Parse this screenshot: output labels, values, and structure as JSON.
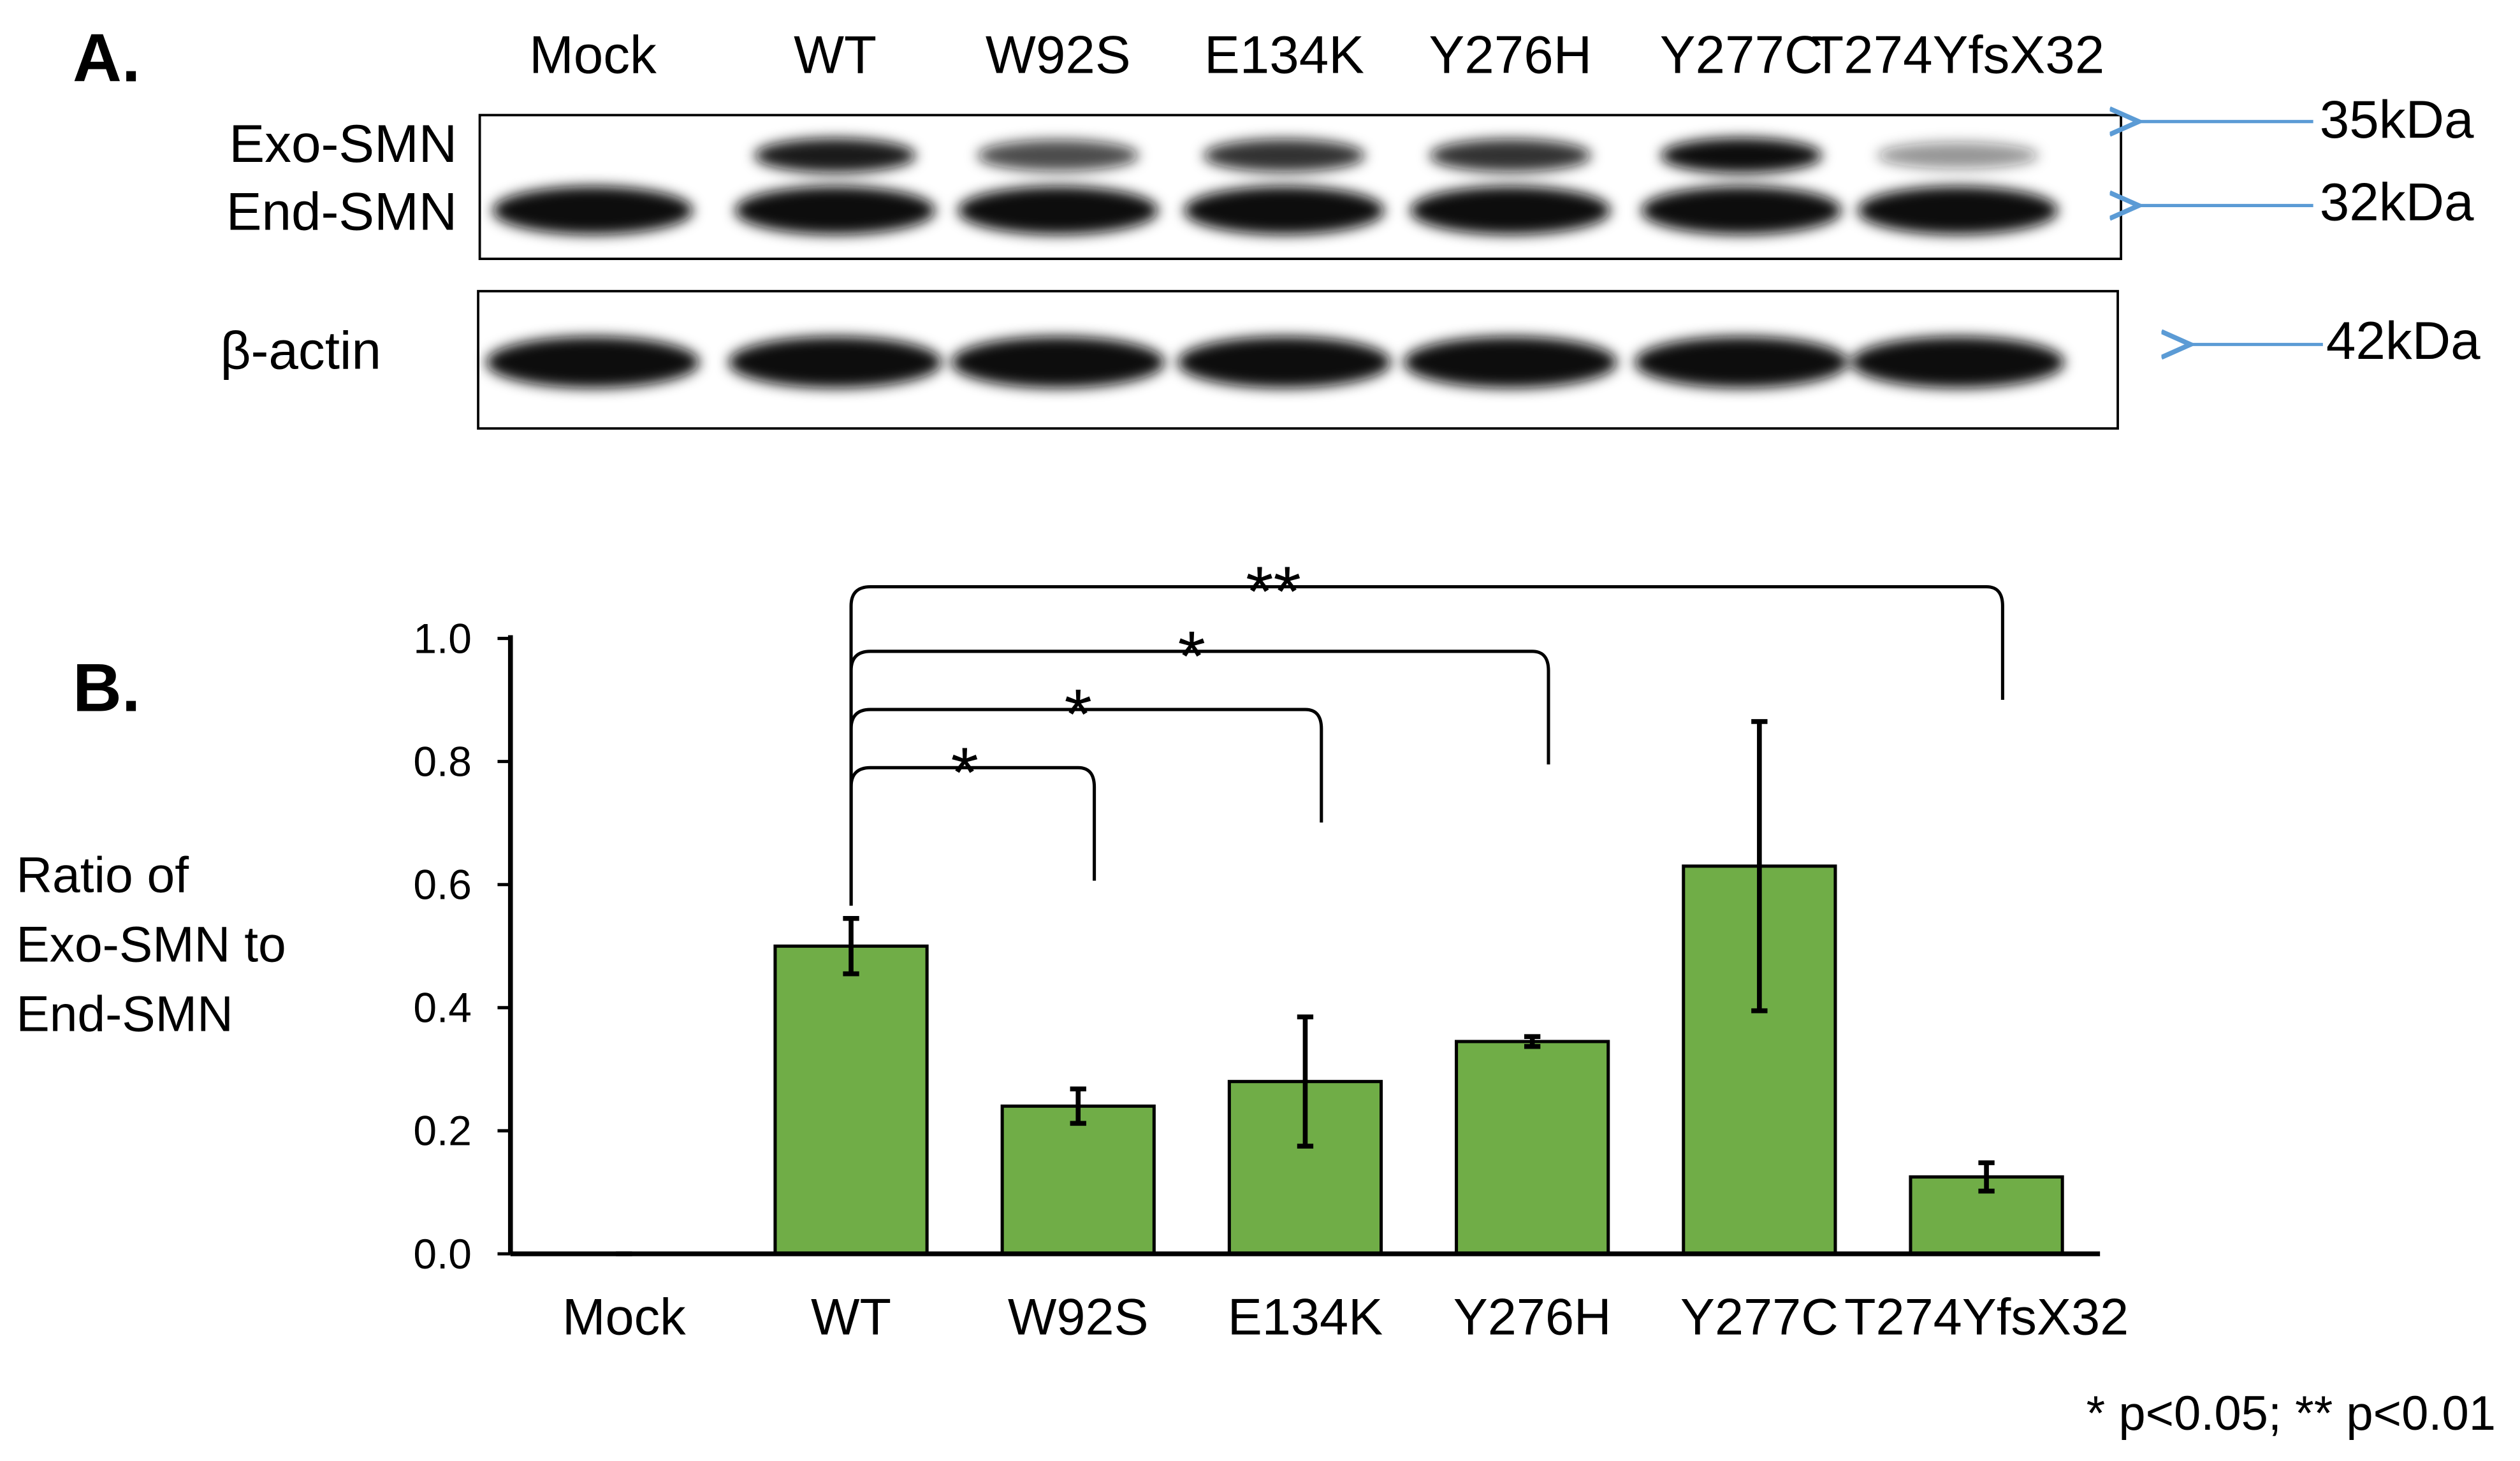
{
  "panel_a": {
    "label": "A.",
    "lanes": [
      "Mock",
      "WT",
      "W92S",
      "E134K",
      "Y276H",
      "Y277C",
      "T274YfsX32"
    ],
    "band_labels": [
      "Exo-SMN",
      "End-SMN",
      "β-actin"
    ],
    "size_markers": [
      "35kDa",
      "32kDa",
      "42kDa"
    ]
  },
  "chart_data": {
    "type": "bar",
    "panel_label": "B.",
    "ylabel_lines": [
      "Ratio of",
      "Exo-SMN to",
      "End-SMN"
    ],
    "categories": [
      "Mock",
      "WT",
      "W92S",
      "E134K",
      "Y276H",
      "Y277C",
      "T274YfsX32"
    ],
    "values": [
      0,
      0.5,
      0.24,
      0.28,
      0.345,
      0.63,
      0.125
    ],
    "errors": [
      0,
      0.045,
      0.028,
      0.105,
      0.008,
      0.235,
      0.023
    ],
    "color": "#70ad47",
    "ylim": [
      0,
      1.0
    ],
    "yticks": [
      {
        "value": 0,
        "label": "0.0"
      },
      0.2,
      0.4,
      0.6,
      0.8,
      {
        "value": 1.0,
        "label": "1.0"
      }
    ],
    "brackets": [
      {
        "from": "WT",
        "to": "W92S",
        "label": "*"
      },
      {
        "from": "WT",
        "to": "E134K",
        "label": "*"
      },
      {
        "from": "WT",
        "to": "Y276H",
        "label": "*"
      },
      {
        "from": "WT",
        "to": "T274YfsX32",
        "label": "**"
      }
    ],
    "footnote": "* p<0.05; ** p<0.01"
  }
}
